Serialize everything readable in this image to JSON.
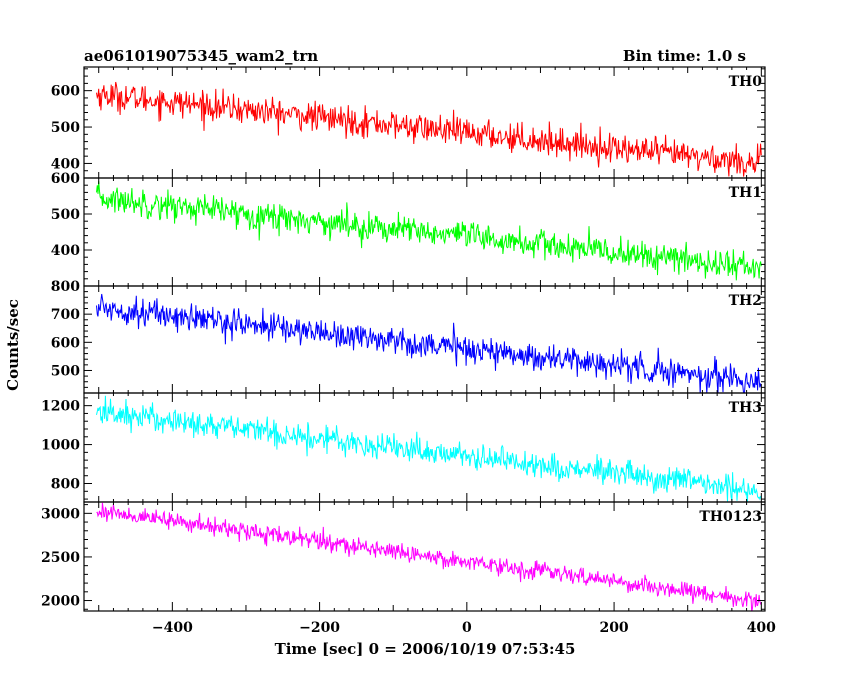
{
  "header": {
    "title": "ae061019075345_wam2_trn",
    "bin_time": "Bin time: 1.0 s"
  },
  "chart_data": {
    "type": "line",
    "title": "ae061019075345_wam2_trn",
    "xlabel": "Time [sec] 0 = 2006/10/19 07:53:45",
    "ylabel": "Counts/sec",
    "xlim": [
      -520,
      405
    ],
    "x_ticks": [
      -400,
      -200,
      0,
      200,
      400
    ],
    "x_tick_labels": [
      "−400",
      "−200",
      "0",
      "200",
      "400"
    ],
    "grid": false,
    "series": [
      {
        "name": "TH0",
        "color": "#ff0000",
        "x_range": [
          -503,
          400
        ],
        "ylim": [
          360,
          665
        ],
        "y_ticks": [
          400,
          500,
          600
        ],
        "start": 590,
        "end": 400,
        "noise": 20
      },
      {
        "name": "TH1",
        "color": "#00ff00",
        "x_range": [
          -503,
          400
        ],
        "ylim": [
          300,
          600
        ],
        "y_ticks": [
          400,
          500,
          600
        ],
        "start": 545,
        "end": 350,
        "noise": 20
      },
      {
        "name": "TH2",
        "color": "#0000ff",
        "x_range": [
          -503,
          400
        ],
        "ylim": [
          420,
          800
        ],
        "y_ticks": [
          500,
          600,
          700,
          800
        ],
        "start": 725,
        "end": 460,
        "noise": 25
      },
      {
        "name": "TH3",
        "color": "#00ffff",
        "x_range": [
          -503,
          400
        ],
        "ylim": [
          705,
          1265
        ],
        "y_ticks": [
          800,
          1000,
          1200
        ],
        "start": 1170,
        "end": 760,
        "noise": 35
      },
      {
        "name": "TH0123",
        "color": "#ff00ff",
        "x_range": [
          -503,
          400
        ],
        "ylim": [
          1880,
          3130
        ],
        "y_ticks": [
          2000,
          2500,
          3000
        ],
        "start": 3030,
        "end": 1990,
        "noise": 50
      }
    ]
  }
}
